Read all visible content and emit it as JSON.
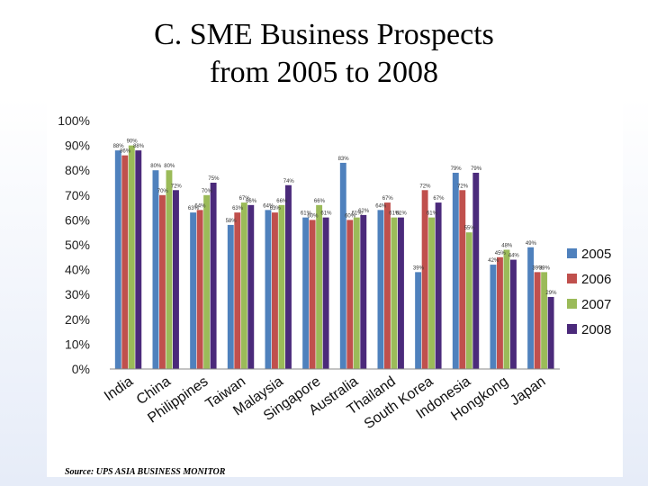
{
  "slide": {
    "title_line1": "C. SME Business Prospects",
    "title_line2": "from 2005 to  2008",
    "source": "Source: UPS ASIA BUSINESS MONITOR"
  },
  "chart_data": {
    "type": "bar",
    "title": "",
    "xlabel": "",
    "ylabel": "",
    "ylim": [
      0,
      100
    ],
    "yticks": [
      "0%",
      "10%",
      "20%",
      "30%",
      "40%",
      "50%",
      "60%",
      "70%",
      "80%",
      "90%",
      "100%"
    ],
    "grid": false,
    "legend_position": "right",
    "categories": [
      "India",
      "China",
      "Philippines",
      "Taiwan",
      "Malaysia",
      "Singapore",
      "Australia",
      "Thailand",
      "South Korea",
      "Indonesia",
      "Hongkong",
      "Japan"
    ],
    "series": [
      {
        "name": "2005",
        "color": "#4f81bd",
        "values": [
          88,
          80,
          63,
          58,
          64,
          61,
          83,
          64,
          39,
          79,
          42,
          49
        ]
      },
      {
        "name": "2006",
        "color": "#c0504d",
        "values": [
          86,
          70,
          64,
          63,
          63,
          60,
          60,
          67,
          72,
          72,
          45,
          39
        ]
      },
      {
        "name": "2007",
        "color": "#9bbb59",
        "values": [
          90,
          80,
          70,
          67,
          66,
          66,
          61,
          61,
          61,
          55,
          48,
          39
        ]
      },
      {
        "name": "2008",
        "color": "#4b2a7b",
        "values": [
          88,
          72,
          75,
          66,
          74,
          61,
          62,
          61,
          67,
          79,
          44,
          29
        ]
      }
    ]
  }
}
